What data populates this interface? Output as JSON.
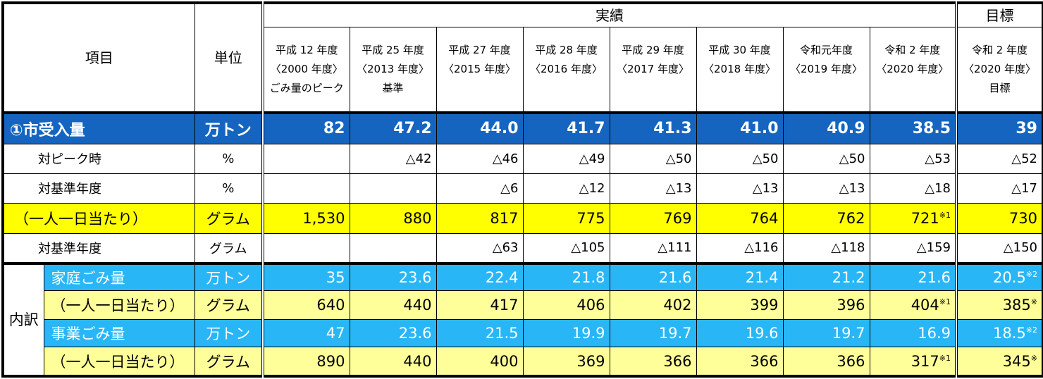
{
  "header": {
    "item": "項目",
    "unit": "単位",
    "actual_group": "実績",
    "target_group": "目標",
    "columns": [
      {
        "line1": "平成 12 年度",
        "line2": "〈2000 年度〉",
        "line3": "ごみ量のピーク"
      },
      {
        "line1": "平成 25 年度",
        "line2": "〈2013 年度〉",
        "line3": "基準"
      },
      {
        "line1": "平成 27 年度",
        "line2": "〈2015 年度〉",
        "line3": ""
      },
      {
        "line1": "平成 28 年度",
        "line2": "〈2016 年度〉",
        "line3": ""
      },
      {
        "line1": "平成 29 年度",
        "line2": "〈2017 年度〉",
        "line3": ""
      },
      {
        "line1": "平成 30 年度",
        "line2": "〈2018 年度〉",
        "line3": ""
      },
      {
        "line1": "令和元年度",
        "line2": "〈2019 年度〉",
        "line3": ""
      },
      {
        "line1": "令和 2 年度",
        "line2": "〈2020 年度〉",
        "line3": ""
      },
      {
        "line1": "令和 2 年度",
        "line2": "〈2020 年度〉",
        "line3": "目標"
      }
    ]
  },
  "rows": [
    {
      "label": "①市受入量",
      "unit": "万トン",
      "values": [
        "82",
        "47.2",
        "44.0",
        "41.7",
        "41.3",
        "41.0",
        "40.9",
        "38.5",
        "39"
      ],
      "notes": [
        "",
        "",
        "",
        "",
        "",
        "",
        "",
        "",
        ""
      ]
    },
    {
      "label": "対ピーク時",
      "unit": "%",
      "values": [
        "",
        "△42",
        "△46",
        "△49",
        "△50",
        "△50",
        "△50",
        "△53",
        "△52"
      ],
      "notes": [
        "",
        "",
        "",
        "",
        "",
        "",
        "",
        "",
        ""
      ]
    },
    {
      "label": "対基準年度",
      "unit": "%",
      "values": [
        "",
        "",
        "△6",
        "△12",
        "△13",
        "△13",
        "△13",
        "△18",
        "△17"
      ],
      "notes": [
        "",
        "",
        "",
        "",
        "",
        "",
        "",
        "",
        ""
      ]
    },
    {
      "label": "（一人一日当たり）",
      "unit": "グラム",
      "values": [
        "1,530",
        "880",
        "817",
        "775",
        "769",
        "764",
        "762",
        "721",
        "730"
      ],
      "notes": [
        "",
        "",
        "",
        "",
        "",
        "",
        "",
        "※1",
        ""
      ]
    },
    {
      "label": "対基準年度",
      "unit": "グラム",
      "values": [
        "",
        "",
        "△63",
        "△105",
        "△111",
        "△116",
        "△118",
        "△159",
        "△150"
      ],
      "notes": [
        "",
        "",
        "",
        "",
        "",
        "",
        "",
        "",
        ""
      ]
    },
    {
      "label": "家庭ごみ量",
      "unit": "万トン",
      "values": [
        "35",
        "23.6",
        "22.4",
        "21.8",
        "21.6",
        "21.4",
        "21.2",
        "21.6",
        "20.5"
      ],
      "notes": [
        "",
        "",
        "",
        "",
        "",
        "",
        "",
        "",
        "※2"
      ]
    },
    {
      "label": "（一人一日当たり）",
      "unit": "グラム",
      "values": [
        "640",
        "440",
        "417",
        "406",
        "402",
        "399",
        "396",
        "404",
        "385"
      ],
      "notes": [
        "",
        "",
        "",
        "",
        "",
        "",
        "",
        "※1",
        "※"
      ]
    },
    {
      "label": "事業ごみ量",
      "unit": "万トン",
      "values": [
        "47",
        "23.6",
        "21.5",
        "19.9",
        "19.7",
        "19.6",
        "19.7",
        "16.9",
        "18.5"
      ],
      "notes": [
        "",
        "",
        "",
        "",
        "",
        "",
        "",
        "",
        "※2"
      ]
    },
    {
      "label": "（一人一日当たり）",
      "unit": "グラム",
      "values": [
        "890",
        "440",
        "400",
        "369",
        "366",
        "366",
        "366",
        "317",
        "345"
      ],
      "notes": [
        "",
        "",
        "",
        "",
        "",
        "",
        "",
        "※1",
        "※"
      ]
    }
  ],
  "breakdown": {
    "char1": "内",
    "char2": "訳"
  }
}
